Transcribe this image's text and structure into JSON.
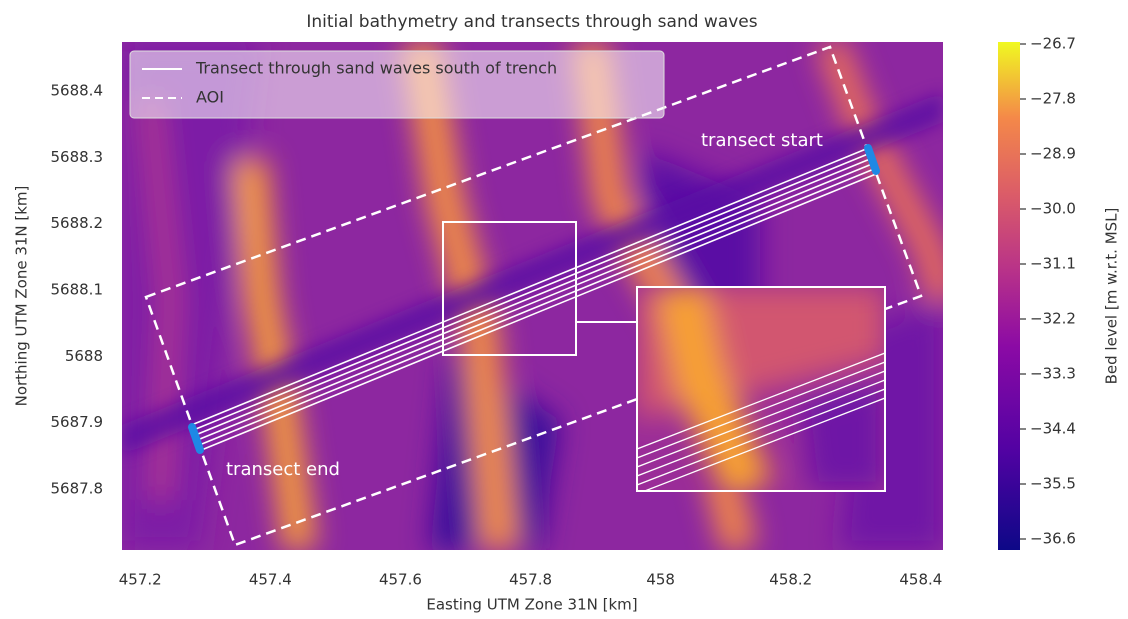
{
  "chart_data": {
    "type": "heatmap",
    "title": "Initial bathymetry and transects through sand waves",
    "xlabel": "Easting UTM Zone 31N [km]",
    "ylabel": "Northing UTM Zone 31N [km]",
    "xlim": [
      457.172,
      458.434
    ],
    "ylim": [
      5687.708,
      5688.474
    ],
    "xticks": [
      457.2,
      457.4,
      457.6,
      457.8,
      458,
      458.2,
      458.4
    ],
    "yticks": [
      5687.8,
      5687.9,
      5688,
      5688.1,
      5688.2,
      5688.3,
      5688.4
    ],
    "grid": false,
    "colorbar": {
      "label": "Bed level [m w.r.t. MSL]",
      "colormap": "plasma",
      "clim": [
        -36.82,
        -26.66
      ],
      "ticks": [
        {
          "value": -26.7,
          "label": "−26.7"
        },
        {
          "value": -27.8,
          "label": "−27.8"
        },
        {
          "value": -28.9,
          "label": "−28.9"
        },
        {
          "value": -30,
          "label": "−30.0"
        },
        {
          "value": -31.1,
          "label": "−31.1"
        },
        {
          "value": -32.2,
          "label": "−32.2"
        },
        {
          "value": -33.3,
          "label": "−33.3"
        },
        {
          "value": -34.4,
          "label": "−34.4"
        },
        {
          "value": -35.5,
          "label": "−35.5"
        },
        {
          "value": -36.6,
          "label": "−36.6"
        }
      ]
    },
    "legend_loc": "upper left",
    "legend": [
      {
        "label": "Transect through sand waves south of trench",
        "style": "solid",
        "color": "#ffffff"
      },
      {
        "label": "AOI",
        "style": "dashed",
        "color": "#ffffff"
      }
    ],
    "annotations": [
      "transect start",
      "transect end"
    ]
  }
}
